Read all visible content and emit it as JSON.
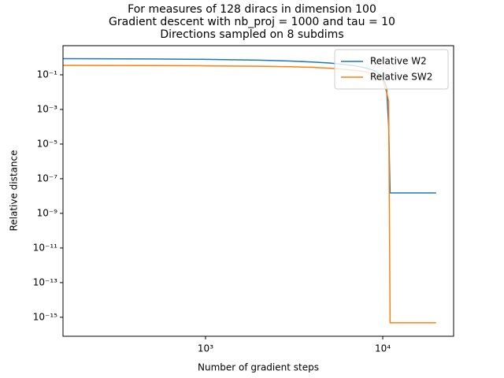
{
  "chart_data": {
    "type": "line",
    "title": [
      "For measures of 128 diracs in dimension 100",
      "Gradient descent with nb_proj = 1000 and tau = 10",
      "Directions sampled on 8 subdims"
    ],
    "x_label": "Number of gradient steps",
    "y_label": "Relative distance",
    "xscale": "log",
    "yscale": "log",
    "x": [
      150,
      500,
      1000,
      2000,
      3000,
      4000,
      5000,
      6000,
      7000,
      8000,
      9000,
      10000,
      10500,
      10800,
      11000,
      12000,
      15000,
      20000
    ],
    "series": [
      {
        "name": "Relative W2",
        "color": "#1f77b4",
        "values": [
          0.85,
          0.82,
          0.78,
          0.7,
          0.62,
          0.55,
          0.48,
          0.4,
          0.33,
          0.25,
          0.17,
          0.08,
          0.02,
          0.0001,
          1.5e-08,
          1.5e-08,
          1.5e-08,
          1.5e-08
        ]
      },
      {
        "name": "Relative SW2",
        "color": "#ff7f0e",
        "values": [
          0.35,
          0.34,
          0.33,
          0.31,
          0.29,
          0.27,
          0.24,
          0.21,
          0.18,
          0.15,
          0.1,
          0.05,
          0.01,
          0.003,
          4.8e-16,
          4.8e-16,
          4.8e-16,
          4.8e-16
        ]
      }
    ],
    "xlim": [
      157,
      25100
    ],
    "ylim": [
      8e-17,
      4.8
    ],
    "xticks": [
      {
        "value": 1000,
        "label": "10³"
      },
      {
        "value": 10000,
        "label": "10⁴"
      }
    ],
    "yticks": [
      {
        "value": 1e-15,
        "label": "10⁻¹⁵"
      },
      {
        "value": 1e-13,
        "label": "10⁻¹³"
      },
      {
        "value": 1e-11,
        "label": "10⁻¹¹"
      },
      {
        "value": 1e-09,
        "label": "10⁻⁹"
      },
      {
        "value": 1e-07,
        "label": "10⁻⁷"
      },
      {
        "value": 1e-05,
        "label": "10⁻⁵"
      },
      {
        "value": 0.001,
        "label": "10⁻³"
      },
      {
        "value": 0.1,
        "label": "10⁻¹"
      }
    ],
    "legend": "upper right"
  }
}
